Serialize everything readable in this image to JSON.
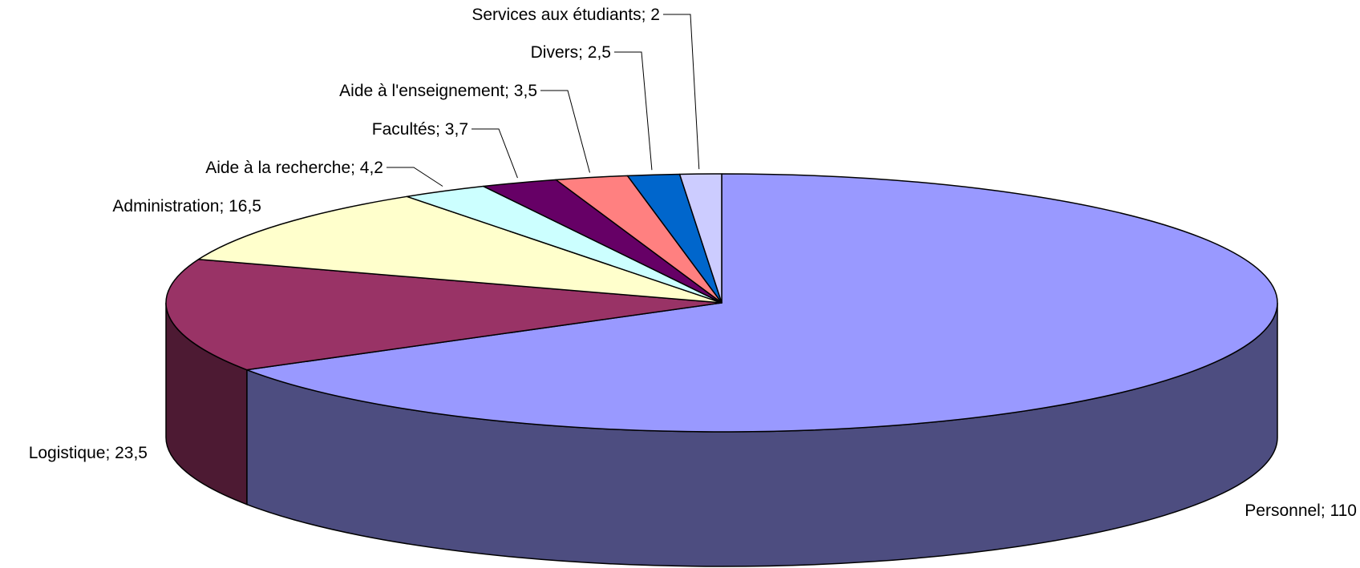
{
  "chart_data": {
    "type": "pie",
    "style": "3d",
    "slices": [
      {
        "name": "Personnel",
        "value": 110,
        "label": "Personnel; 110",
        "color": "#9999ff"
      },
      {
        "name": "Logistique",
        "value": 23.5,
        "label": "Logistique; 23,5",
        "color": "#993366"
      },
      {
        "name": "Administration",
        "value": 16.5,
        "label": "Administration; 16,5",
        "color": "#ffffcc"
      },
      {
        "name": "Aide à la recherche",
        "value": 4.2,
        "label": "Aide à la recherche; 4,2",
        "color": "#ccffff"
      },
      {
        "name": "Facultés",
        "value": 3.7,
        "label": "Facultés; 3,7",
        "color": "#660066"
      },
      {
        "name": "Aide à l'enseignement",
        "value": 3.5,
        "label": "Aide à l'enseignement; 3,5",
        "color": "#ff8080"
      },
      {
        "name": "Divers",
        "value": 2.5,
        "label": "Divers; 2,5",
        "color": "#0066cc"
      },
      {
        "name": "Services aux étudiants",
        "value": 2,
        "label": "Services aux étudiants; 2",
        "color": "#ccccff"
      }
    ]
  }
}
